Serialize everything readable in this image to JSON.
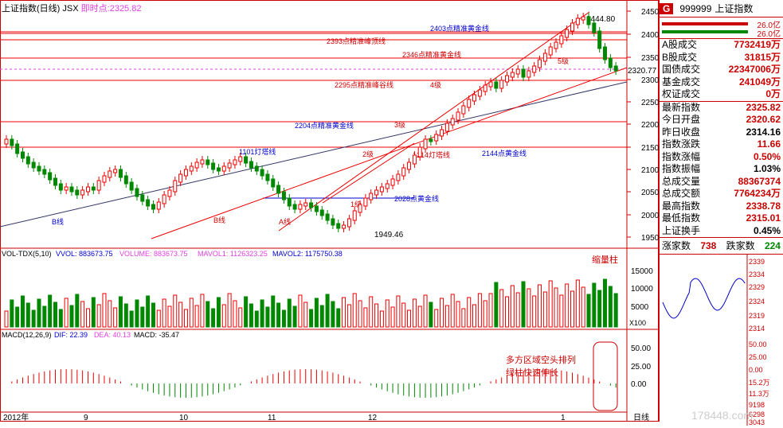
{
  "header": {
    "title": "上证指数(日线)",
    "code": "JSX",
    "realtime_label": "即时点:",
    "realtime_value": "2325.82"
  },
  "price_axis": [
    "2450",
    "2400",
    "2350",
    "2300",
    "2250",
    "2200",
    "2150",
    "2100",
    "2050",
    "2000",
    "1950"
  ],
  "price_marker": "2320.77",
  "annotations": {
    "a2403": "2403点精准黄金线",
    "a2393": "2393点精准峰顶线",
    "a2346": "2346点精准黄金线",
    "a2295": "2295点精准峰谷线",
    "a2204": "2204点精准黄金线",
    "a1101": "1101灯塔线",
    "a1214": "1214灯塔线",
    "a2144": "2144点黄金线",
    "a2028": "2028点黄金线",
    "high": "2444.80",
    "low": "1949.46",
    "lv5": "5级",
    "lv4": "4级",
    "lv3": "3级",
    "lv2": "2级",
    "lv1": "1级",
    "bline": "B线",
    "bline2": "B线",
    "aline": "A线"
  },
  "volume": {
    "label": "VOL-TDX(5,10)",
    "vvol": "VVOL: 883673.75",
    "volume": "VOLUME: 883673.75",
    "mavol1": "MAVOL1: 1126323.25",
    "mavol2": "MAVOL2: 1175750.38",
    "axis": [
      "15000",
      "10000",
      "5000"
    ],
    "unit": "X100",
    "note": "缩量柱"
  },
  "macd": {
    "label": "MACD(12,26,9)",
    "dif": "DIF: 22.39",
    "dea": "DEA: 40.13",
    "macd": "MACD: -35.47",
    "axis": [
      "50.00",
      "25.00",
      "0.00"
    ],
    "note1": "多方区域空头排列",
    "note2": "绿柱快速伸长"
  },
  "xaxis": {
    "m1": "2012年",
    "m2": "9",
    "m3": "10",
    "m4": "11",
    "m5": "12",
    "m6": "1",
    "period": "日线"
  },
  "panel": {
    "code": "999999",
    "name": "上证指数",
    "bars": [
      "26.0亿",
      "26.0亿"
    ],
    "items": [
      {
        "k": "A股成交",
        "v": "7732419万",
        "c": "r"
      },
      {
        "k": "B股成交",
        "v": "31815万",
        "c": "r"
      },
      {
        "k": "国债成交",
        "v": "22347006万",
        "c": "r"
      },
      {
        "k": "基金成交",
        "v": "241049万",
        "c": "r"
      },
      {
        "k": "权证成交",
        "v": "0万",
        "c": "r"
      }
    ],
    "stats": [
      {
        "k": "最新指数",
        "v": "2325.82",
        "c": "r"
      },
      {
        "k": "今日开盘",
        "v": "2320.62",
        "c": "r"
      },
      {
        "k": "昨日收盘",
        "v": "2314.16",
        "c": "k"
      },
      {
        "k": "指数涨跌",
        "v": "11.66",
        "c": "r"
      },
      {
        "k": "指数涨幅",
        "v": "0.50%",
        "c": "r"
      },
      {
        "k": "指数振幅",
        "v": "1.03%",
        "c": "k"
      },
      {
        "k": "总成交量",
        "v": "88367374",
        "c": "r"
      },
      {
        "k": "总成交额",
        "v": "7764234万",
        "c": "r"
      },
      {
        "k": "最高指数",
        "v": "2338.78",
        "c": "r"
      },
      {
        "k": "最低指数",
        "v": "2315.01",
        "c": "r"
      },
      {
        "k": "上证换手",
        "v": "0.45%",
        "c": "k"
      }
    ],
    "updown": {
      "up_label": "涨家数",
      "up": "738",
      "down_label": "跌家数",
      "down": "224"
    },
    "mini_axis": [
      "2339",
      "2334",
      "2329",
      "2324",
      "2319",
      "2314",
      "50.00",
      "25.00",
      "0.00",
      "15.2万",
      "11.3万",
      "9198",
      "6298",
      "3043"
    ],
    "watermark": "178448.com"
  }
}
